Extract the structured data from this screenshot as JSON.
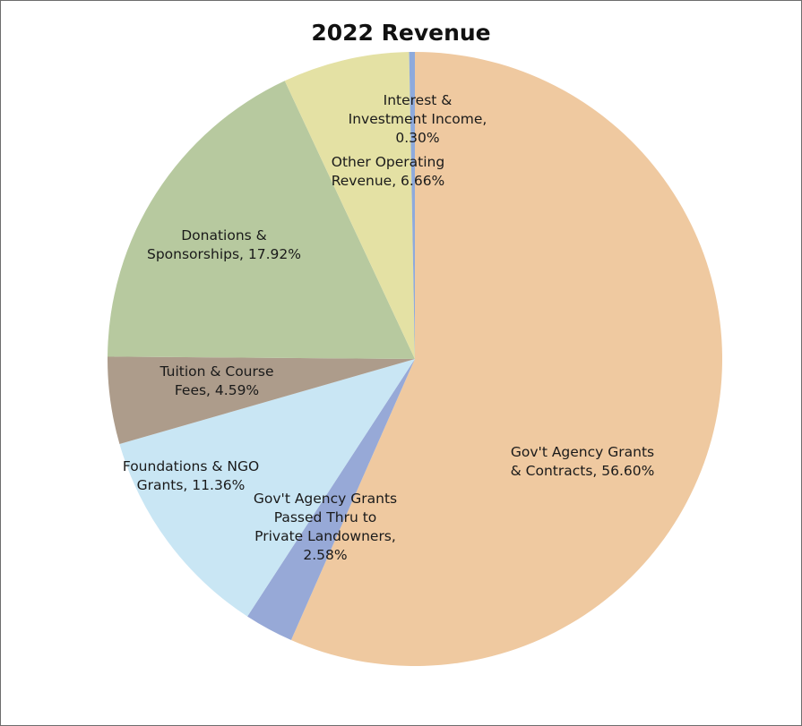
{
  "chart_data": {
    "type": "pie",
    "title": "2022 Revenue",
    "slices": [
      {
        "label_lines": [
          "Gov't Agency Grants",
          "& Contracts, 56.60%"
        ],
        "value": 56.6,
        "color": "#efc9a0"
      },
      {
        "label_lines": [
          "Gov't Agency Grants",
          "Passed Thru to",
          "Private Landowners,",
          "2.58%"
        ],
        "value": 2.58,
        "color": "#97a9d7"
      },
      {
        "label_lines": [
          "Foundations & NGO",
          "Grants, 11.36%"
        ],
        "value": 11.36,
        "color": "#c9e6f4"
      },
      {
        "label_lines": [
          "Tuition & Course",
          "Fees, 4.59%"
        ],
        "value": 4.59,
        "color": "#ad9c8b"
      },
      {
        "label_lines": [
          "Donations &",
          "Sponsorships, 17.92%"
        ],
        "value": 17.92,
        "color": "#b7c99f"
      },
      {
        "label_lines": [
          "Other Operating",
          "Revenue, 6.66%"
        ],
        "value": 6.66,
        "color": "#e4e1a4"
      },
      {
        "label_lines": [
          "Interest &",
          "Investment Income,",
          "0.30%"
        ],
        "value": 0.3,
        "color": "#8eaadc"
      }
    ]
  }
}
